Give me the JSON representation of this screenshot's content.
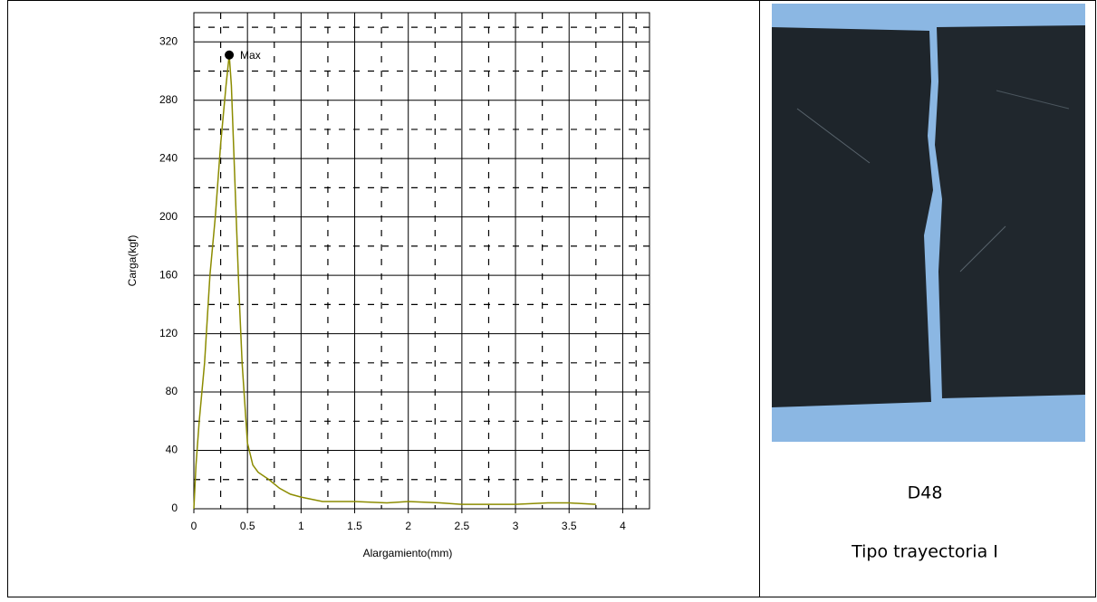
{
  "chart_data": {
    "type": "line",
    "x_label": "Alargamiento(mm)",
    "y_label": "Carga(kgf)",
    "xlim": [
      0,
      4.25
    ],
    "ylim": [
      0,
      340
    ],
    "xticks": [
      0,
      0.5,
      1,
      1.5,
      2,
      2.5,
      3,
      3.5,
      4
    ],
    "yticks": [
      0,
      40,
      80,
      120,
      160,
      200,
      240,
      280,
      320
    ],
    "grid": true,
    "series": [
      {
        "color": "#8c8c00",
        "x": [
          0,
          0.02,
          0.05,
          0.1,
          0.15,
          0.2,
          0.25,
          0.3,
          0.33,
          0.35,
          0.38,
          0.42,
          0.45,
          0.5,
          0.55,
          0.6,
          0.7,
          0.8,
          0.9,
          1.0,
          1.2,
          1.5,
          1.8,
          2.0,
          2.3,
          2.5,
          2.8,
          3.0,
          3.3,
          3.5,
          3.75
        ],
        "values": [
          0,
          30,
          60,
          100,
          160,
          200,
          250,
          290,
          311,
          290,
          230,
          150,
          100,
          45,
          30,
          25,
          20,
          14,
          10,
          8,
          5,
          5,
          4,
          5,
          4,
          3,
          3,
          3,
          4,
          4,
          3
        ]
      }
    ],
    "annotations": [
      {
        "text": "Max",
        "x": 0.33,
        "y": 311
      }
    ]
  },
  "caption": {
    "label": "D48",
    "text": "Tipo trayectoria I"
  }
}
